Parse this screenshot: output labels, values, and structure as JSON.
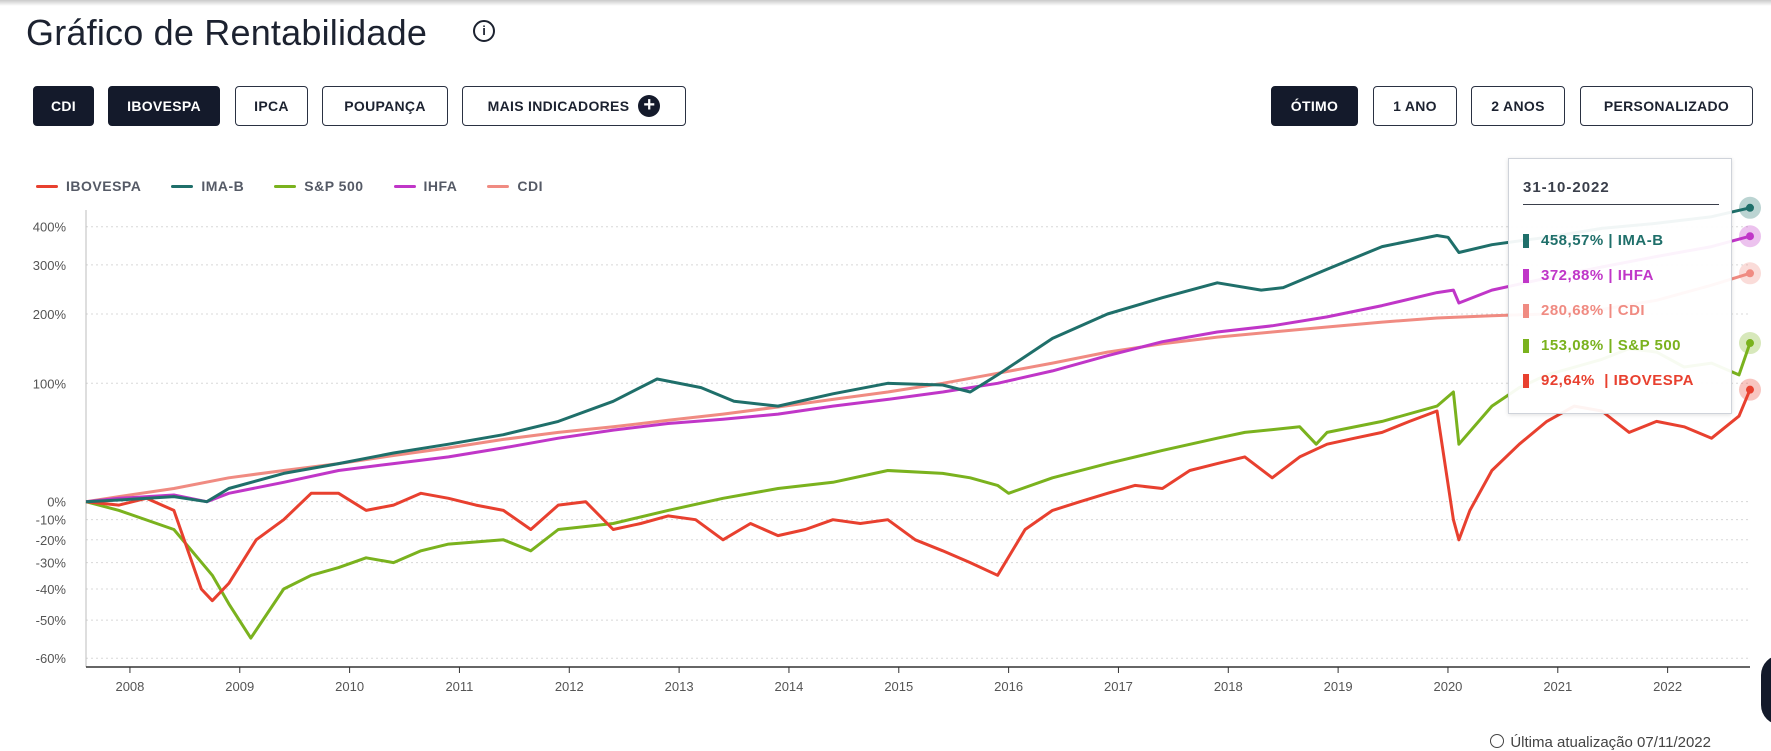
{
  "header": {
    "title": "Gráfico de Rentabilidade"
  },
  "indicator_buttons": [
    {
      "label": "CDI",
      "active": true
    },
    {
      "label": "IBOVESPA",
      "active": true
    },
    {
      "label": "IPCA",
      "active": false
    },
    {
      "label": "POUPANÇA",
      "active": false
    },
    {
      "label": "MAIS INDICADORES",
      "active": false
    }
  ],
  "period_buttons": [
    {
      "label": "ÓTIMO",
      "active": true
    },
    {
      "label": "1 ANO",
      "active": false
    },
    {
      "label": "2 ANOS",
      "active": false
    },
    {
      "label": "PERSONALIZADO",
      "active": false
    }
  ],
  "tooltip": {
    "date": "31-10-2022",
    "rows": [
      {
        "text": "458,57% | IMA-B",
        "color": "#1f6f6a"
      },
      {
        "text": "372,88% | IHFA",
        "color": "#c036c8"
      },
      {
        "text": "280,68% | CDI",
        "color": "#f08b82"
      },
      {
        "text": "153,08% | S&P 500",
        "color": "#7ab21e"
      },
      {
        "text": "92,64%  | IBOVESPA",
        "color": "#e8402f"
      }
    ]
  },
  "footer": {
    "last_update": "Última atualização 07/11/2022"
  },
  "chart_data": {
    "type": "line",
    "y_scale": "log (1 + return)",
    "yticks": [
      {
        "label": "400%",
        "value": 400
      },
      {
        "label": "300%",
        "value": 300
      },
      {
        "label": "200%",
        "value": 200
      },
      {
        "label": "100%",
        "value": 100
      },
      {
        "label": "0%",
        "value": 0
      },
      {
        "label": "-10%",
        "value": -10
      },
      {
        "label": "-20%",
        "value": -20
      },
      {
        "label": "-30%",
        "value": -30
      },
      {
        "label": "-40%",
        "value": -40
      },
      {
        "label": "-50%",
        "value": -50
      },
      {
        "label": "-60%",
        "value": -60
      }
    ],
    "xticks": [
      "2008",
      "2009",
      "2010",
      "2011",
      "2012",
      "2013",
      "2014",
      "2015",
      "2016",
      "2017",
      "2018",
      "2019",
      "2020",
      "2021",
      "2022"
    ],
    "x_range": [
      2007.7,
      2022.85
    ],
    "grid": true,
    "legend_position": "top-left",
    "series": [
      {
        "name": "IBOVESPA",
        "color": "#e8402f",
        "x": [
          2007.7,
          2008.0,
          2008.25,
          2008.5,
          2008.75,
          2008.85,
          2009.0,
          2009.25,
          2009.5,
          2009.75,
          2010.0,
          2010.25,
          2010.5,
          2010.75,
          2011.0,
          2011.25,
          2011.5,
          2011.75,
          2012.0,
          2012.25,
          2012.5,
          2012.75,
          2013.0,
          2013.25,
          2013.5,
          2013.75,
          2014.0,
          2014.25,
          2014.5,
          2014.75,
          2015.0,
          2015.25,
          2015.5,
          2015.75,
          2016.0,
          2016.25,
          2016.5,
          2016.75,
          2017.0,
          2017.25,
          2017.5,
          2017.75,
          2018.0,
          2018.25,
          2018.5,
          2018.75,
          2019.0,
          2019.25,
          2019.5,
          2019.75,
          2020.0,
          2020.15,
          2020.2,
          2020.3,
          2020.5,
          2020.75,
          2021.0,
          2021.25,
          2021.5,
          2021.75,
          2022.0,
          2022.25,
          2022.5,
          2022.75,
          2022.85
        ],
        "y": [
          0,
          -2,
          2,
          -5,
          -40,
          -44,
          -38,
          -20,
          -10,
          5,
          5,
          -5,
          -2,
          5,
          2,
          -2,
          -5,
          -15,
          -2,
          0,
          -15,
          -12,
          -8,
          -10,
          -20,
          -12,
          -18,
          -15,
          -10,
          -12,
          -10,
          -20,
          -25,
          -30,
          -35,
          -15,
          -5,
          0,
          5,
          10,
          8,
          20,
          25,
          30,
          15,
          30,
          40,
          45,
          50,
          60,
          70,
          -10,
          -20,
          -5,
          20,
          40,
          60,
          75,
          70,
          50,
          60,
          55,
          45,
          65,
          92.64
        ]
      },
      {
        "name": "IMA-B",
        "color": "#1f6f6a",
        "x": [
          2007.7,
          2008.0,
          2008.5,
          2008.8,
          2009.0,
          2009.5,
          2010.0,
          2010.5,
          2011.0,
          2011.5,
          2012.0,
          2012.5,
          2012.9,
          2013.3,
          2013.6,
          2014.0,
          2014.5,
          2015.0,
          2015.5,
          2015.75,
          2016.0,
          2016.5,
          2017.0,
          2017.5,
          2018.0,
          2018.4,
          2018.6,
          2019.0,
          2019.5,
          2020.0,
          2020.1,
          2020.2,
          2020.5,
          2020.75,
          2021.0,
          2021.5,
          2022.0,
          2022.5,
          2022.85
        ],
        "y": [
          0,
          1,
          3,
          0,
          8,
          18,
          25,
          33,
          40,
          48,
          60,
          80,
          105,
          95,
          80,
          75,
          88,
          100,
          98,
          90,
          110,
          160,
          200,
          230,
          260,
          245,
          250,
          290,
          345,
          375,
          370,
          330,
          350,
          360,
          370,
          395,
          410,
          430,
          458.57
        ]
      },
      {
        "name": "S&P 500",
        "color": "#7ab21e",
        "x": [
          2007.7,
          2008.0,
          2008.5,
          2008.85,
          2009.0,
          2009.2,
          2009.5,
          2009.75,
          2010.0,
          2010.25,
          2010.5,
          2010.75,
          2011.0,
          2011.5,
          2011.75,
          2012.0,
          2012.5,
          2013.0,
          2013.5,
          2014.0,
          2014.5,
          2015.0,
          2015.5,
          2015.75,
          2016.0,
          2016.1,
          2016.5,
          2017.0,
          2017.5,
          2018.0,
          2018.25,
          2018.75,
          2018.9,
          2019.0,
          2019.5,
          2020.0,
          2020.15,
          2020.2,
          2020.5,
          2020.75,
          2021.0,
          2021.5,
          2021.75,
          2022.0,
          2022.25,
          2022.5,
          2022.75,
          2022.85
        ],
        "y": [
          0,
          -5,
          -15,
          -35,
          -45,
          -55,
          -40,
          -35,
          -32,
          -28,
          -30,
          -25,
          -22,
          -20,
          -25,
          -15,
          -12,
          -5,
          2,
          8,
          12,
          20,
          18,
          15,
          10,
          5,
          15,
          25,
          35,
          45,
          50,
          55,
          40,
          50,
          60,
          75,
          90,
          40,
          75,
          95,
          110,
          130,
          145,
          140,
          120,
          125,
          110,
          153.08
        ]
      },
      {
        "name": "IHFA",
        "color": "#c036c8",
        "x": [
          2007.7,
          2008.0,
          2008.5,
          2008.8,
          2009.0,
          2009.5,
          2010.0,
          2010.5,
          2011.0,
          2011.5,
          2012.0,
          2012.5,
          2013.0,
          2013.5,
          2014.0,
          2014.5,
          2015.0,
          2015.5,
          2016.0,
          2016.5,
          2017.0,
          2017.5,
          2018.0,
          2018.5,
          2019.0,
          2019.5,
          2020.0,
          2020.15,
          2020.2,
          2020.5,
          2021.0,
          2021.5,
          2022.0,
          2022.5,
          2022.85
        ],
        "y": [
          0,
          2,
          4,
          0,
          5,
          12,
          20,
          25,
          30,
          37,
          45,
          52,
          58,
          62,
          67,
          75,
          82,
          90,
          100,
          115,
          135,
          155,
          170,
          180,
          195,
          215,
          240,
          245,
          220,
          245,
          270,
          295,
          320,
          345,
          372.88
        ]
      },
      {
        "name": "CDI",
        "color": "#f08b82",
        "x": [
          2007.7,
          2008.0,
          2008.5,
          2009.0,
          2009.5,
          2010.0,
          2010.5,
          2011.0,
          2011.5,
          2012.0,
          2012.5,
          2013.0,
          2013.5,
          2014.0,
          2014.5,
          2015.0,
          2015.5,
          2016.0,
          2016.5,
          2017.0,
          2017.5,
          2018.0,
          2018.5,
          2019.0,
          2019.5,
          2020.0,
          2020.5,
          2021.0,
          2021.5,
          2022.0,
          2022.5,
          2022.85
        ],
        "y": [
          0,
          3,
          8,
          15,
          20,
          25,
          31,
          37,
          44,
          50,
          55,
          61,
          67,
          74,
          82,
          90,
          100,
          112,
          125,
          140,
          152,
          162,
          170,
          178,
          186,
          193,
          197,
          200,
          208,
          225,
          255,
          280.68
        ]
      }
    ]
  }
}
